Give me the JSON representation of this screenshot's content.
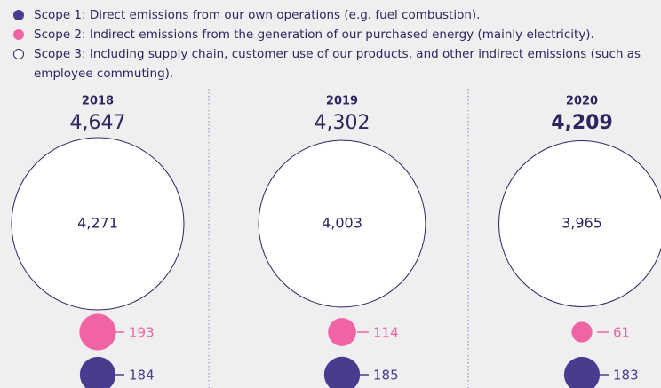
{
  "chart_data": {
    "type": "bubble",
    "categories": [
      "2018",
      "2019",
      "2020"
    ],
    "emphasis": "2020",
    "totals": {
      "values": [
        4647,
        4302,
        4209
      ],
      "value_labels": [
        "4,647",
        "4,302",
        "4,209"
      ]
    },
    "series": [
      {
        "name": "Scope 1: Direct emissions from our own operations (e.g. fuel combustion).",
        "color": "#4a3b8f",
        "values": [
          184,
          185,
          183
        ]
      },
      {
        "name": "Scope 2: Indirect emissions from the generation of our purchased energy (mainly electricity).",
        "color": "#f064a6",
        "values": [
          193,
          114,
          61
        ]
      },
      {
        "name": "Scope 3: Including supply chain, customer use of our products, and other indirect emissions (such as employee commuting).",
        "color": "#ffffff",
        "values": [
          4271,
          4003,
          3965
        ],
        "value_labels": [
          "4,271",
          "4,003",
          "3,965"
        ]
      }
    ]
  }
}
